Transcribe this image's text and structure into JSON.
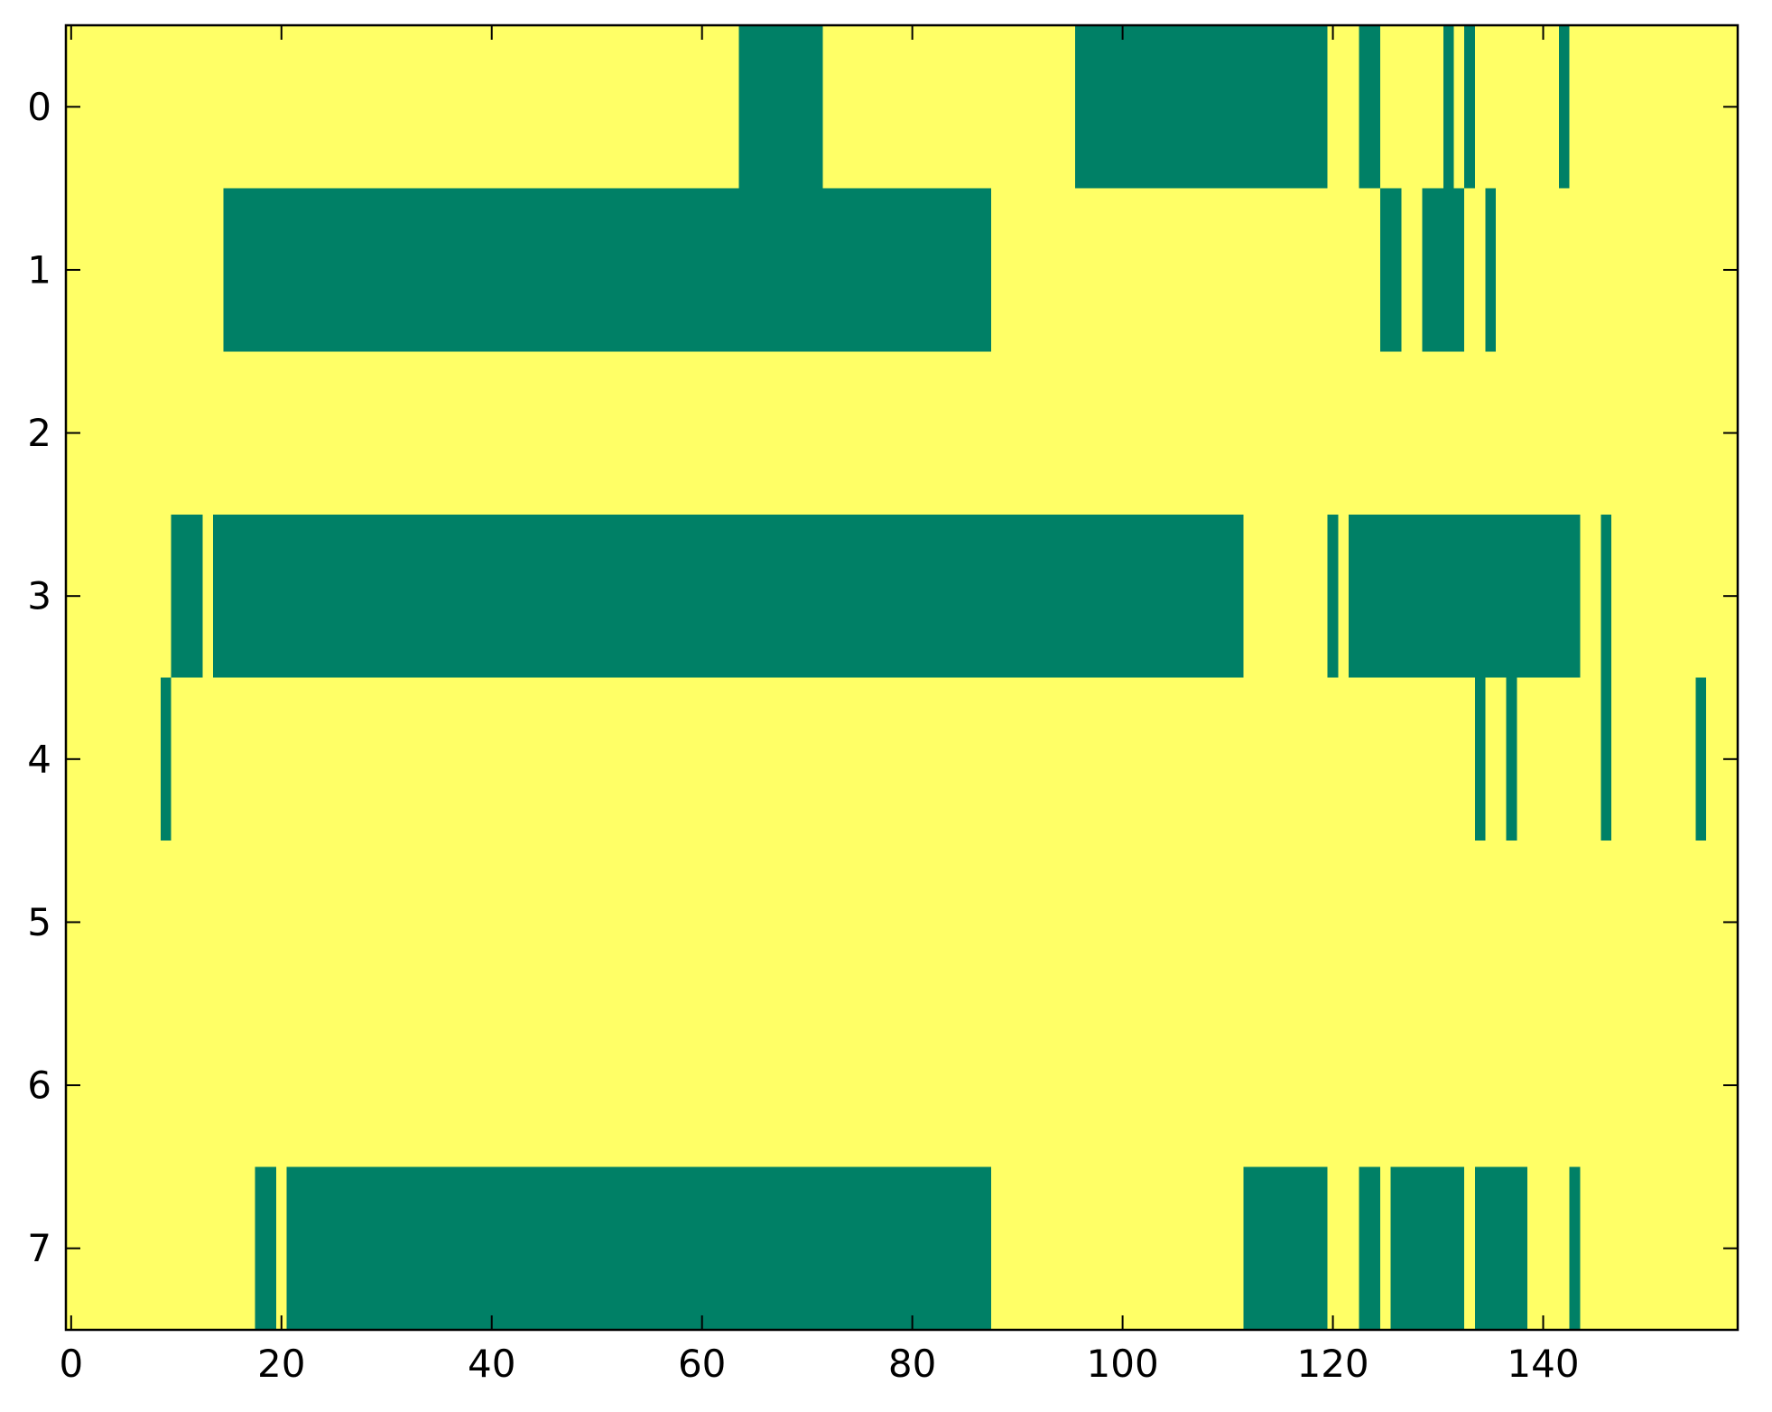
{
  "chart_data": {
    "type": "heatmap",
    "title": "",
    "xlabel": "",
    "ylabel": "",
    "n_columns": 159,
    "n_rows": 8,
    "xlim": [
      -0.5,
      158.5
    ],
    "ylim": [
      7.5,
      -0.5
    ],
    "x_ticks": [
      0,
      20,
      40,
      60,
      80,
      100,
      120,
      140
    ],
    "x_tick_labels": [
      "0",
      "20",
      "40",
      "60",
      "80",
      "100",
      "120",
      "140"
    ],
    "y_ticks": [
      0,
      1,
      2,
      3,
      4,
      5,
      6,
      7
    ],
    "y_tick_labels": [
      "0",
      "1",
      "2",
      "3",
      "4",
      "5",
      "6",
      "7"
    ],
    "grid": false,
    "colors": {
      "background_value": "#ffff66",
      "filled_value": "#008066",
      "frame": "#000000"
    },
    "filled_cells": [
      {
        "row": 0,
        "runs": [
          [
            64,
            71
          ],
          [
            96,
            119
          ],
          [
            123,
            124
          ],
          [
            131,
            131
          ],
          [
            133,
            133
          ],
          [
            142,
            142
          ]
        ]
      },
      {
        "row": 1,
        "runs": [
          [
            15,
            87
          ],
          [
            125,
            126
          ],
          [
            129,
            132
          ],
          [
            135,
            135
          ]
        ]
      },
      {
        "row": 2,
        "runs": []
      },
      {
        "row": 3,
        "runs": [
          [
            10,
            12
          ],
          [
            14,
            111
          ],
          [
            120,
            120
          ],
          [
            122,
            143
          ],
          [
            146,
            146
          ]
        ]
      },
      {
        "row": 4,
        "runs": [
          [
            9,
            9
          ],
          [
            134,
            134
          ],
          [
            137,
            137
          ],
          [
            146,
            146
          ],
          [
            155,
            155
          ]
        ]
      },
      {
        "row": 5,
        "runs": []
      },
      {
        "row": 6,
        "runs": []
      },
      {
        "row": 7,
        "runs": [
          [
            18,
            19
          ],
          [
            21,
            87
          ],
          [
            112,
            119
          ],
          [
            123,
            124
          ],
          [
            126,
            132
          ],
          [
            134,
            138
          ],
          [
            143,
            143
          ]
        ]
      }
    ]
  }
}
